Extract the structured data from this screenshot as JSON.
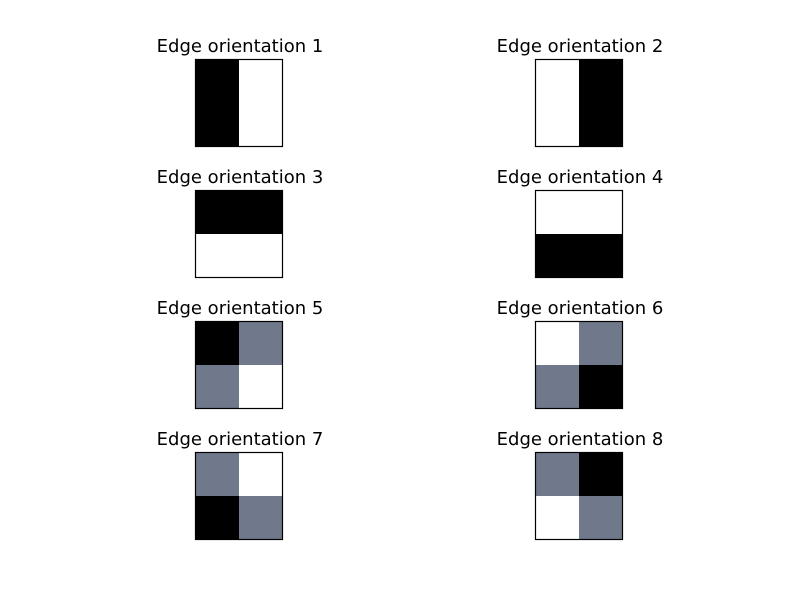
{
  "colors": {
    "black": "#000000",
    "white": "#ffffff",
    "gray": "#6f798b",
    "frame": "#000000"
  },
  "chart_data": [
    {
      "type": "heatmap",
      "title": "Edge orientation 1",
      "grid": [
        [
          "black",
          "white"
        ],
        [
          "black",
          "white"
        ]
      ]
    },
    {
      "type": "heatmap",
      "title": "Edge orientation 2",
      "grid": [
        [
          "white",
          "black"
        ],
        [
          "white",
          "black"
        ]
      ]
    },
    {
      "type": "heatmap",
      "title": "Edge orientation 3",
      "grid": [
        [
          "black",
          "black"
        ],
        [
          "white",
          "white"
        ]
      ]
    },
    {
      "type": "heatmap",
      "title": "Edge orientation 4",
      "grid": [
        [
          "white",
          "white"
        ],
        [
          "black",
          "black"
        ]
      ]
    },
    {
      "type": "heatmap",
      "title": "Edge orientation 5",
      "grid": [
        [
          "black",
          "gray"
        ],
        [
          "gray",
          "white"
        ]
      ]
    },
    {
      "type": "heatmap",
      "title": "Edge orientation 6",
      "grid": [
        [
          "white",
          "gray"
        ],
        [
          "gray",
          "black"
        ]
      ]
    },
    {
      "type": "heatmap",
      "title": "Edge orientation 7",
      "grid": [
        [
          "gray",
          "white"
        ],
        [
          "black",
          "gray"
        ]
      ]
    },
    {
      "type": "heatmap",
      "title": "Edge orientation 8",
      "grid": [
        [
          "gray",
          "black"
        ],
        [
          "white",
          "gray"
        ]
      ]
    }
  ]
}
